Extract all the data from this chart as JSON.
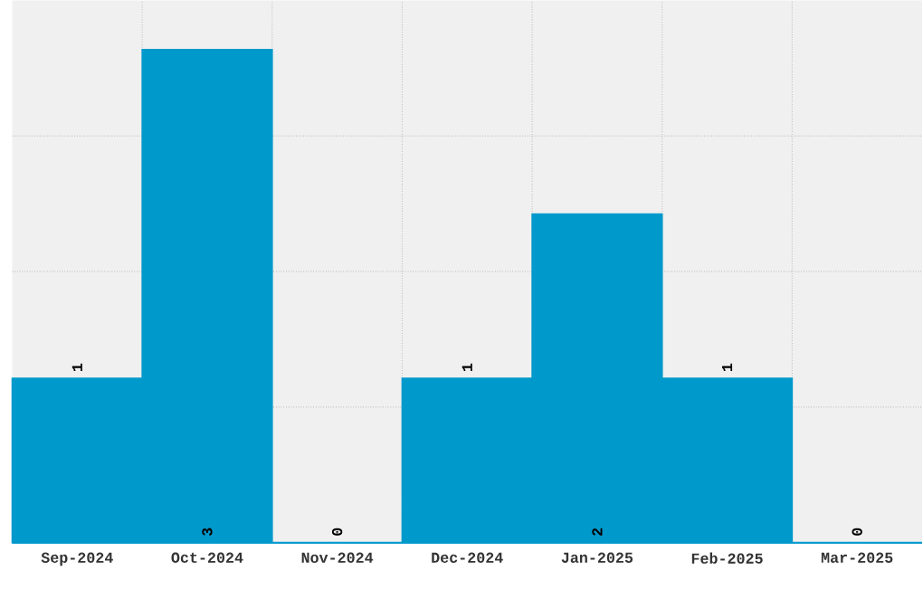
{
  "chart_data": {
    "type": "bar",
    "categories": [
      "Sep-2024",
      "Oct-2024",
      "Nov-2024",
      "Dec-2024",
      "Jan-2025",
      "Feb-2025",
      "Mar-2025"
    ],
    "values": [
      1,
      3,
      0,
      1,
      2,
      1,
      0
    ],
    "color": "#0099cc",
    "ylim": [
      0,
      3.3
    ],
    "yticks": [
      {
        "value": 0.825,
        "label": null
      },
      {
        "value": 1.65,
        "label": null
      },
      {
        "value": 2.475,
        "label": null
      }
    ],
    "tick_labels": "x",
    "grid": true,
    "data_labels": true
  }
}
